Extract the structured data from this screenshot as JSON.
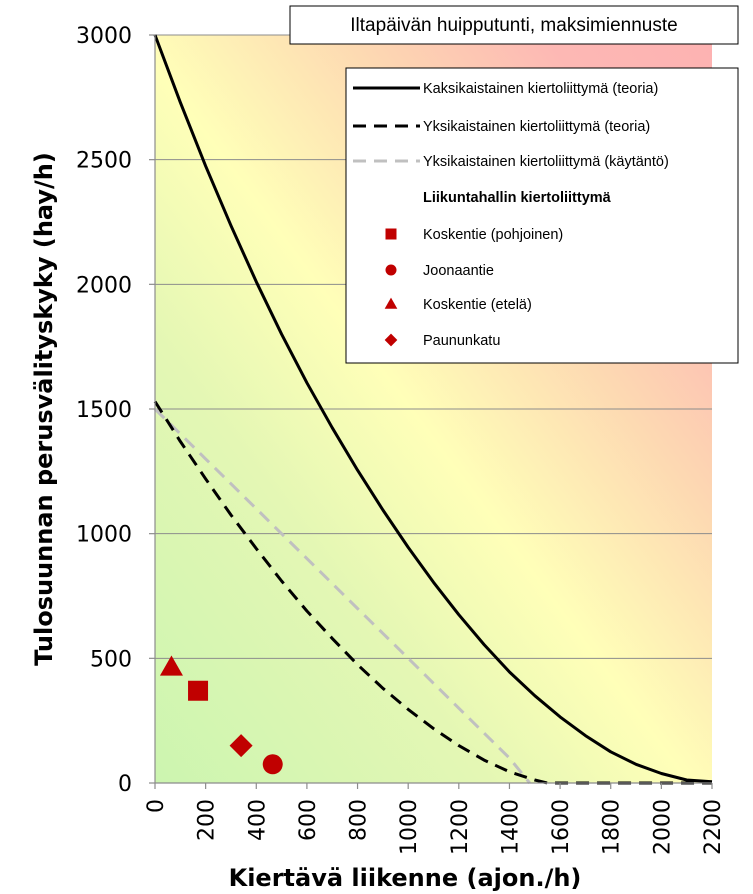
{
  "chart_data": {
    "type": "line",
    "title": "Iltapäivän huipputunti, maksimiennuste",
    "xlabel": "Kiertävä liikenne (ajon./h)",
    "ylabel": "Tulosuunnan perusvälityskyky (hay/h)",
    "xlim": [
      0,
      2200
    ],
    "ylim": [
      0,
      3000
    ],
    "xticks": [
      "0",
      "200",
      "400",
      "600",
      "800",
      "1000",
      "1200",
      "1400",
      "1600",
      "1800",
      "2000",
      "2200"
    ],
    "yticks": [
      "0",
      "500",
      "1000",
      "1500",
      "2000",
      "2500",
      "3000"
    ],
    "grid": "horizontal",
    "background": "gradient green (bottom-left) to yellow to red (top-right)",
    "legend_position": "top-right",
    "series": [
      {
        "name": "Kaksikaistainen kiertoliittymä (teoria)",
        "style": "solid",
        "color": "#000000",
        "x": [
          0,
          100,
          200,
          300,
          400,
          500,
          600,
          700,
          800,
          900,
          1000,
          1100,
          1200,
          1300,
          1400,
          1500,
          1600,
          1700,
          1800,
          1900,
          2000,
          2100,
          2200
        ],
        "y": [
          3000,
          2730,
          2475,
          2235,
          2010,
          1800,
          1605,
          1425,
          1255,
          1095,
          945,
          805,
          675,
          555,
          445,
          350,
          265,
          190,
          125,
          75,
          38,
          12,
          5
        ]
      },
      {
        "name": "Yksikaistainen kiertoliittymä (teoria)",
        "style": "dashed",
        "color": "#000000",
        "x": [
          0,
          100,
          200,
          300,
          400,
          500,
          600,
          700,
          800,
          900,
          1000,
          1100,
          1200,
          1300,
          1400,
          1500,
          1550,
          1600,
          1800,
          2000,
          2200
        ],
        "y": [
          1530,
          1370,
          1220,
          1075,
          940,
          810,
          690,
          580,
          475,
          380,
          295,
          218,
          150,
          92,
          45,
          12,
          0,
          0,
          0,
          0,
          0
        ]
      },
      {
        "name": "Yksikaistainen kiertoliittymä (käytäntö)",
        "style": "dashed",
        "color": "#c0c0c0",
        "x": [
          0,
          100,
          200,
          300,
          400,
          500,
          600,
          700,
          800,
          900,
          1000,
          1100,
          1200,
          1300,
          1400,
          1480
        ],
        "y": [
          1500,
          1400,
          1300,
          1200,
          1100,
          1000,
          900,
          800,
          700,
          600,
          500,
          400,
          300,
          200,
          100,
          0
        ]
      }
    ],
    "points_group_label": "Liikuntahallin kiertoliittymä",
    "points": [
      {
        "name": "Koskentie (pohjoinen)",
        "marker": "square",
        "color": "#c00000",
        "x": 170,
        "y": 370
      },
      {
        "name": "Joonaantie",
        "marker": "circle",
        "color": "#c00000",
        "x": 465,
        "y": 75
      },
      {
        "name": "Koskentie (etelä)",
        "marker": "triangle",
        "color": "#c00000",
        "x": 65,
        "y": 465
      },
      {
        "name": "Paununkatu",
        "marker": "diamond",
        "color": "#c00000",
        "x": 340,
        "y": 150
      }
    ]
  }
}
